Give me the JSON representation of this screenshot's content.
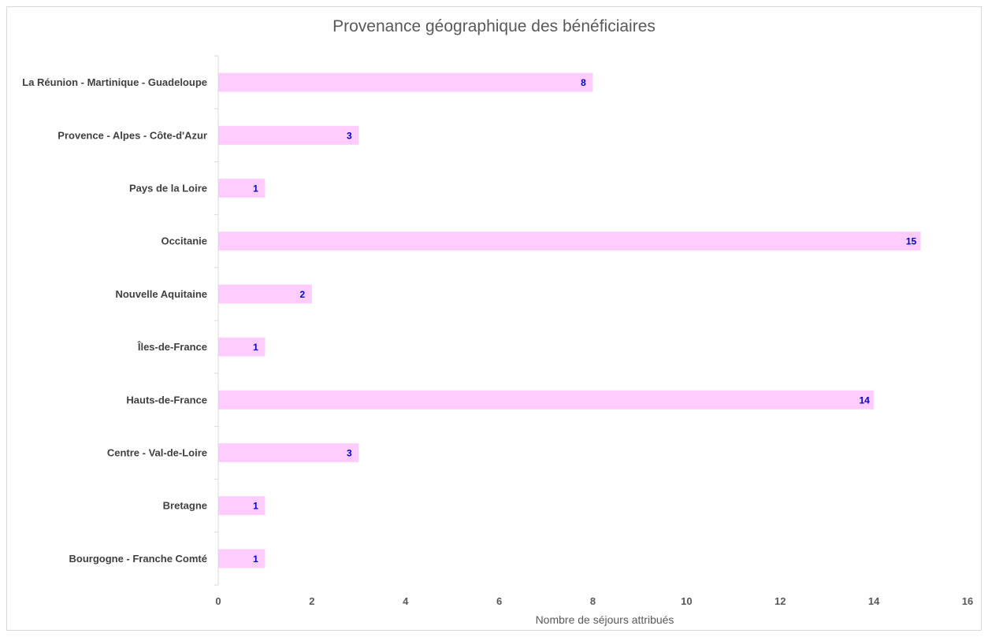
{
  "chart_data": {
    "type": "bar",
    "orientation": "horizontal",
    "title": "Provenance géographique des bénéficiaires",
    "xlabel": "Nombre de séjours attribués",
    "ylabel": "",
    "categories": [
      "La Réunion - Martinique - Guadeloupe",
      "Provence - Alpes - Côte-d'Azur",
      "Pays de la Loire",
      "Occitanie",
      "Nouvelle Aquitaine",
      "Îles-de-France",
      "Hauts-de-France",
      "Centre - Val-de-Loire",
      "Bretagne",
      "Bourgogne - Franche Comté"
    ],
    "values": [
      8,
      3,
      1,
      15,
      2,
      1,
      14,
      3,
      1,
      1
    ],
    "xlim": [
      0,
      16
    ],
    "xticks": [
      0,
      2,
      4,
      6,
      8,
      10,
      12,
      14,
      16
    ],
    "grid": false,
    "legend": "none",
    "data_labels": true,
    "colors": {
      "bar": "#ffccff",
      "data_label": "#0000cc",
      "axis": "#d9d9d9"
    }
  }
}
